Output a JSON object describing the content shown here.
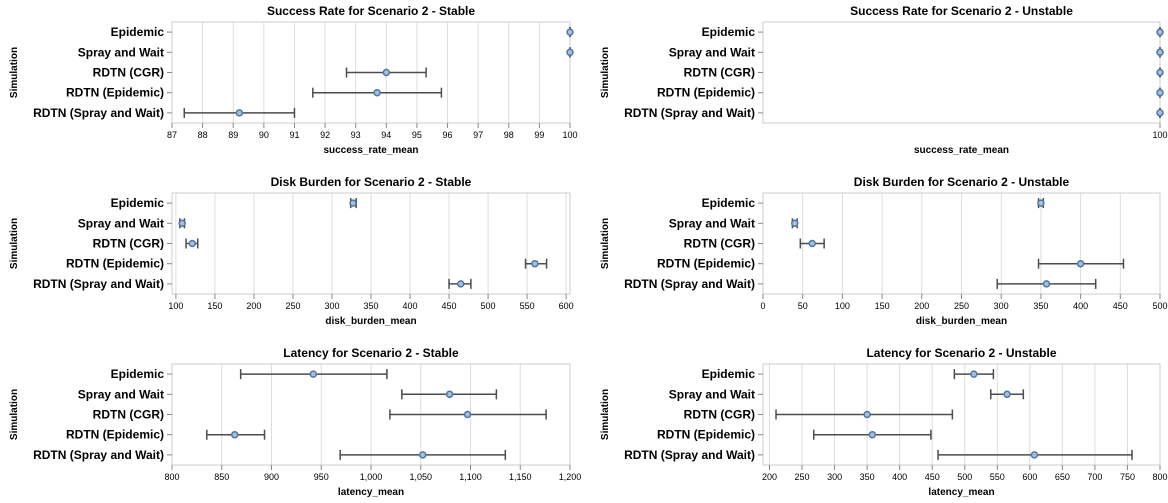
{
  "colors": {
    "point_fill": "#a9bfd9",
    "point_stroke": "#4c78a8",
    "errorbar": "#4c4c4c",
    "grid": "#dddddd"
  },
  "chart_data": [
    {
      "type": "errorbar",
      "title": "Success Rate for Scenario 2 - Stable",
      "xlabel": "success_rate_mean",
      "ylabel": "Simulation",
      "xlim": [
        87,
        100
      ],
      "xticks": [
        87,
        88,
        89,
        90,
        91,
        92,
        93,
        94,
        95,
        96,
        97,
        98,
        99,
        100
      ],
      "xtick_labels": [
        "87",
        "88",
        "89",
        "90",
        "91",
        "92",
        "93",
        "94",
        "95",
        "96",
        "97",
        "98",
        "99",
        "100"
      ],
      "grid": true,
      "categories": [
        "Epidemic",
        "Spray and Wait",
        "RDTN (CGR)",
        "RDTN (Epidemic)",
        "RDTN (Spray and Wait)"
      ],
      "values": [
        100,
        100,
        94.0,
        93.7,
        89.2
      ],
      "lower": [
        100,
        100,
        92.7,
        91.6,
        87.4
      ],
      "upper": [
        100,
        100,
        95.3,
        95.8,
        91.0
      ]
    },
    {
      "type": "errorbar",
      "title": "Success Rate for Scenario 2 - Unstable",
      "xlabel": "success_rate_mean",
      "ylabel": "Simulation",
      "xlim": [
        0,
        100
      ],
      "xticks": [
        100
      ],
      "xtick_labels": [
        "100"
      ],
      "grid": true,
      "categories": [
        "Epidemic",
        "Spray and Wait",
        "RDTN (CGR)",
        "RDTN (Epidemic)",
        "RDTN (Spray and Wait)"
      ],
      "values": [
        100,
        100,
        100,
        100,
        100
      ],
      "lower": [
        100,
        100,
        100,
        100,
        100
      ],
      "upper": [
        100,
        100,
        100,
        100,
        100
      ]
    },
    {
      "type": "errorbar",
      "title": "Disk Burden for Scenario 2 - Stable",
      "xlabel": "disk_burden_mean",
      "ylabel": "Simulation",
      "xlim": [
        95,
        605
      ],
      "xticks": [
        100,
        150,
        200,
        250,
        300,
        350,
        400,
        450,
        500,
        550,
        600
      ],
      "xtick_labels": [
        "100",
        "150",
        "200",
        "250",
        "300",
        "350",
        "400",
        "450",
        "500",
        "550",
        "600"
      ],
      "grid": true,
      "categories": [
        "Epidemic",
        "Spray and Wait",
        "RDTN (CGR)",
        "RDTN (Epidemic)",
        "RDTN (Spray and Wait)"
      ],
      "values": [
        327,
        108,
        121,
        560,
        465
      ],
      "lower": [
        324,
        105,
        113,
        548,
        450
      ],
      "upper": [
        331,
        111,
        128,
        575,
        478
      ]
    },
    {
      "type": "errorbar",
      "title": "Disk Burden for Scenario 2 - Unstable",
      "xlabel": "disk_burden_mean",
      "ylabel": "Simulation",
      "xlim": [
        0,
        500
      ],
      "xticks": [
        0,
        50,
        100,
        150,
        200,
        250,
        300,
        350,
        400,
        450,
        500
      ],
      "xtick_labels": [
        "0",
        "50",
        "100",
        "150",
        "200",
        "250",
        "300",
        "350",
        "400",
        "450",
        "500"
      ],
      "grid": true,
      "categories": [
        "Epidemic",
        "Spray and Wait",
        "RDTN (CGR)",
        "RDTN (Epidemic)",
        "RDTN (Spray and Wait)"
      ],
      "values": [
        350,
        40,
        62,
        400,
        357
      ],
      "lower": [
        347,
        37,
        47,
        347,
        295
      ],
      "upper": [
        353,
        43,
        77,
        454,
        419
      ]
    },
    {
      "type": "errorbar",
      "title": "Latency for Scenario 2 - Stable",
      "xlabel": "latency_mean",
      "ylabel": "Simulation",
      "xlim": [
        800,
        1200
      ],
      "xticks": [
        800,
        850,
        900,
        950,
        1000,
        1050,
        1100,
        1150,
        1200
      ],
      "xtick_labels": [
        "800",
        "850",
        "900",
        "950",
        "1,000",
        "1,050",
        "1,100",
        "1,150",
        "1,200"
      ],
      "grid": true,
      "categories": [
        "Epidemic",
        "Spray and Wait",
        "RDTN (CGR)",
        "RDTN (Epidemic)",
        "RDTN (Spray and Wait)"
      ],
      "values": [
        942,
        1079,
        1097,
        863,
        1052
      ],
      "lower": [
        869,
        1031,
        1019,
        835,
        969
      ],
      "upper": [
        1016,
        1126,
        1176,
        893,
        1135
      ]
    },
    {
      "type": "errorbar",
      "title": "Latency for Scenario 2 - Unstable",
      "xlabel": "latency_mean",
      "ylabel": "Simulation",
      "xlim": [
        190,
        800
      ],
      "xticks": [
        200,
        250,
        300,
        350,
        400,
        450,
        500,
        550,
        600,
        650,
        700,
        750,
        800
      ],
      "xtick_labels": [
        "200",
        "250",
        "300",
        "350",
        "400",
        "450",
        "500",
        "550",
        "600",
        "650",
        "700",
        "750",
        "800"
      ],
      "grid": true,
      "categories": [
        "Epidemic",
        "Spray and Wait",
        "RDTN (CGR)",
        "RDTN (Epidemic)",
        "RDTN (Spray and Wait)"
      ],
      "values": [
        514,
        565,
        350,
        358,
        607
      ],
      "lower": [
        484,
        540,
        210,
        268,
        459
      ],
      "upper": [
        544,
        590,
        481,
        448,
        757
      ]
    }
  ]
}
